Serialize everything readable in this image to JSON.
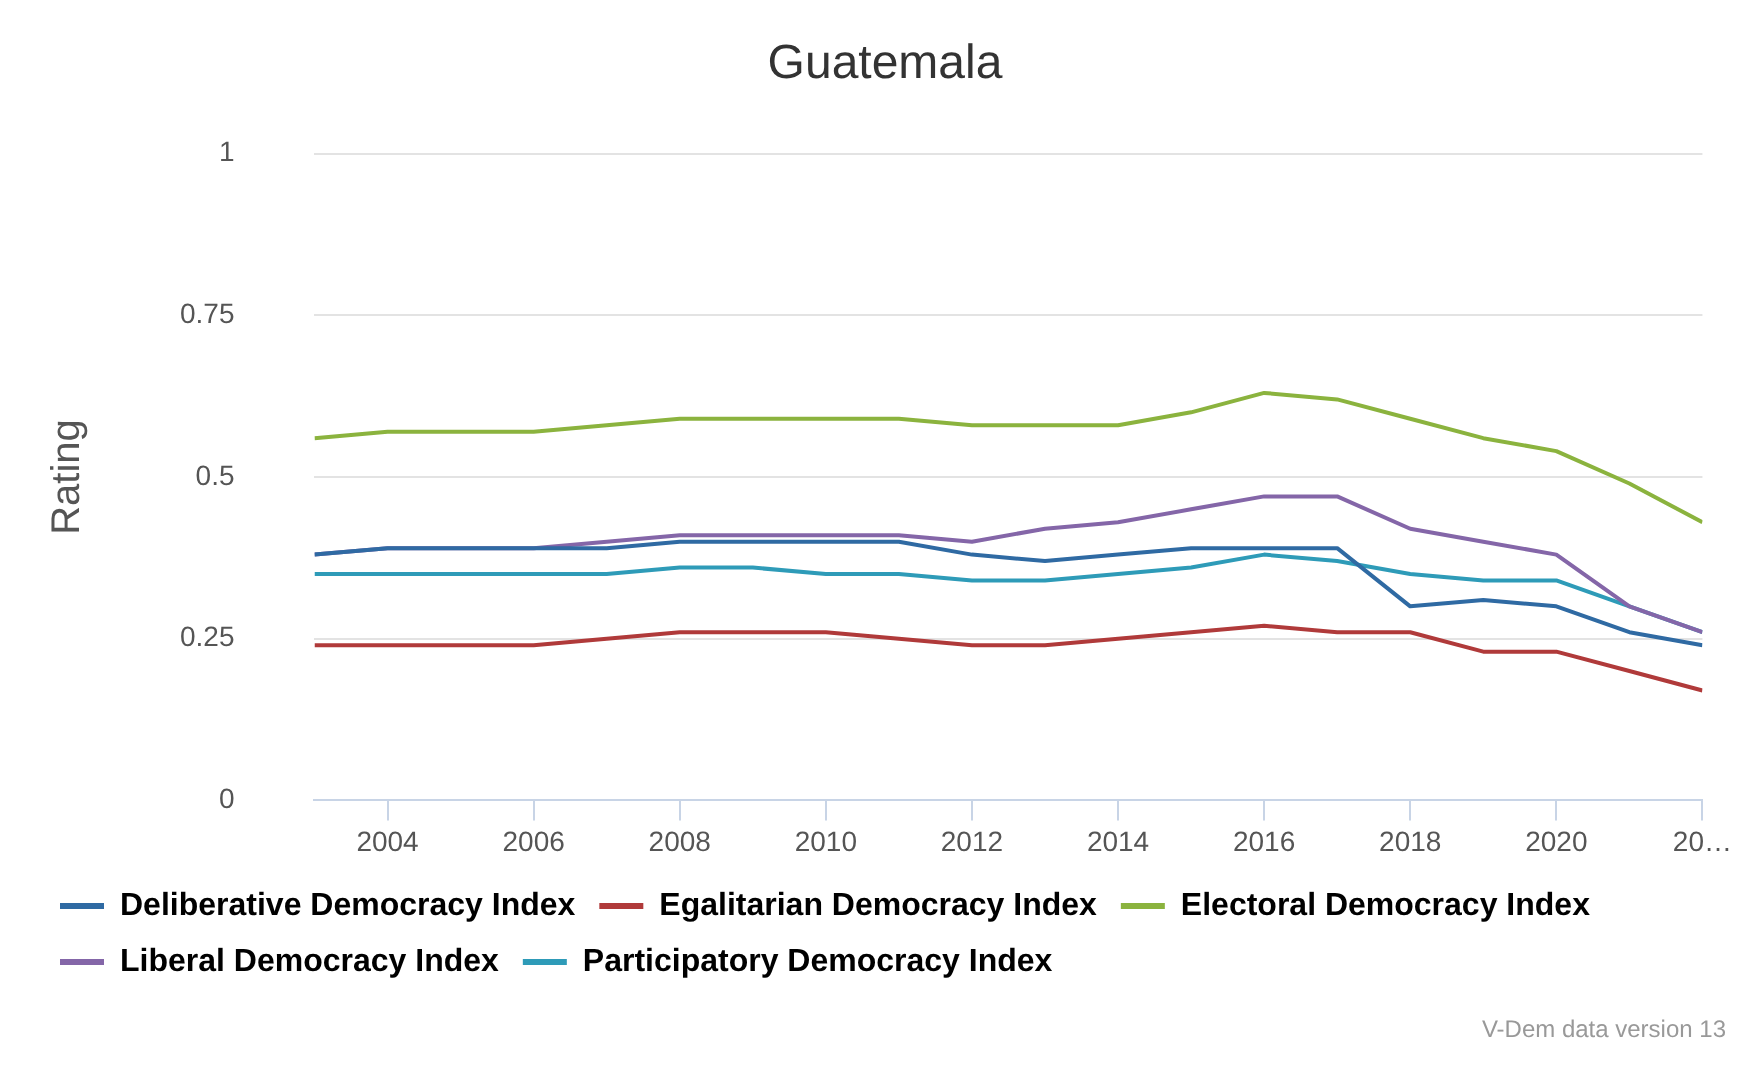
{
  "chart_data": {
    "type": "line",
    "title": "Guatemala",
    "ylabel": "Rating",
    "x": [
      2003,
      2004,
      2005,
      2006,
      2007,
      2008,
      2009,
      2010,
      2011,
      2012,
      2013,
      2014,
      2015,
      2016,
      2017,
      2018,
      2019,
      2020,
      2021,
      2022
    ],
    "series": [
      {
        "name": "Deliberative Democracy Index",
        "color": "#2f6aa3",
        "values": [
          0.38,
          0.39,
          0.39,
          0.39,
          0.39,
          0.4,
          0.4,
          0.4,
          0.4,
          0.38,
          0.37,
          0.38,
          0.39,
          0.39,
          0.39,
          0.3,
          0.31,
          0.3,
          0.26,
          0.24
        ]
      },
      {
        "name": "Egalitarian Democracy Index",
        "color": "#b03a3a",
        "values": [
          0.24,
          0.24,
          0.24,
          0.24,
          0.25,
          0.26,
          0.26,
          0.26,
          0.25,
          0.24,
          0.24,
          0.25,
          0.26,
          0.27,
          0.26,
          0.26,
          0.23,
          0.23,
          0.2,
          0.17
        ]
      },
      {
        "name": "Electoral Democracy Index",
        "color": "#8bb33e",
        "values": [
          0.56,
          0.57,
          0.57,
          0.57,
          0.58,
          0.59,
          0.59,
          0.59,
          0.59,
          0.58,
          0.58,
          0.58,
          0.6,
          0.63,
          0.62,
          0.59,
          0.56,
          0.54,
          0.49,
          0.43
        ]
      },
      {
        "name": "Liberal Democracy Index",
        "color": "#8466a8",
        "values": [
          0.38,
          0.39,
          0.39,
          0.39,
          0.4,
          0.41,
          0.41,
          0.41,
          0.41,
          0.4,
          0.42,
          0.43,
          0.45,
          0.47,
          0.47,
          0.42,
          0.4,
          0.38,
          0.3,
          0.26
        ]
      },
      {
        "name": "Participatory Democracy Index",
        "color": "#2e9bb8",
        "values": [
          0.35,
          0.35,
          0.35,
          0.35,
          0.35,
          0.36,
          0.36,
          0.35,
          0.35,
          0.34,
          0.34,
          0.35,
          0.36,
          0.38,
          0.37,
          0.35,
          0.34,
          0.34,
          0.3,
          0.26
        ]
      }
    ],
    "xlim": [
      2003,
      2022
    ],
    "xticks": [
      2004,
      2006,
      2008,
      2010,
      2012,
      2014,
      2016,
      2018,
      2020,
      {
        "value": 2022,
        "label": "20…"
      }
    ],
    "ylim": [
      0,
      1
    ],
    "yticks": [
      0,
      0.25,
      0.5,
      0.75,
      1
    ],
    "grid": "y",
    "legend": "bottom",
    "marker": "none",
    "line_style": "solid",
    "annotations": [
      "V-Dem data version 13"
    ]
  }
}
